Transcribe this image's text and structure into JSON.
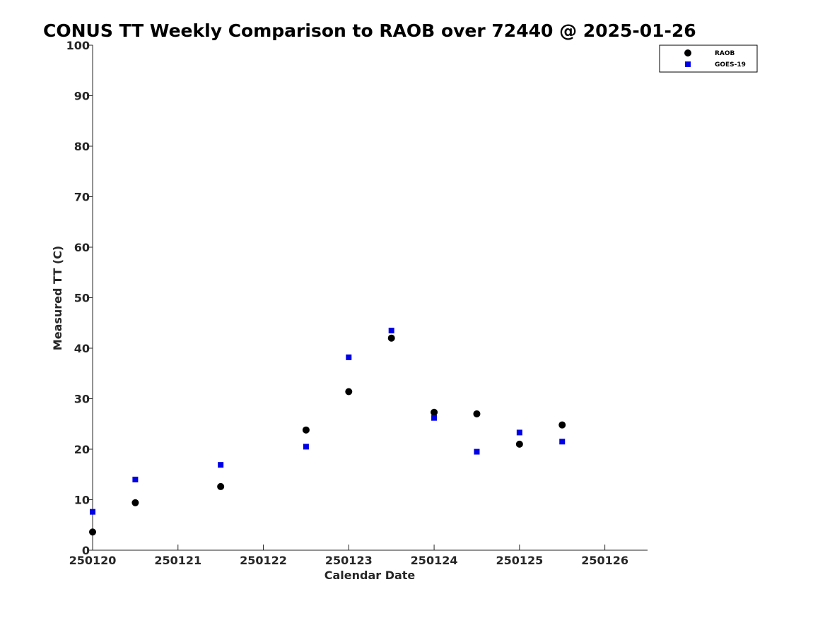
{
  "chart_data": {
    "type": "scatter",
    "title": "CONUS TT Weekly Comparison to RAOB over 72440 @ 2025-01-26",
    "xlabel": "Calendar Date",
    "ylabel": "Measured TT (C)",
    "xlim": [
      250120,
      250126.5
    ],
    "ylim": [
      0,
      100
    ],
    "xticks": [
      250120,
      250121,
      250122,
      250123,
      250124,
      250125,
      250126
    ],
    "xtick_labels": [
      "250120",
      "250121",
      "250122",
      "250123",
      "250124",
      "250125",
      "250126"
    ],
    "yticks": [
      0,
      10,
      20,
      30,
      40,
      50,
      60,
      70,
      80,
      90,
      100
    ],
    "ytick_labels": [
      "0",
      "10",
      "20",
      "30",
      "40",
      "50",
      "60",
      "70",
      "80",
      "90",
      "100"
    ],
    "grid": false,
    "legend_position": "top-right",
    "series": [
      {
        "name": "RAOB",
        "marker": "circle",
        "color": "#000000",
        "points": [
          {
            "x": 250120.0,
            "y": 3.6
          },
          {
            "x": 250120.5,
            "y": 9.4
          },
          {
            "x": 250121.5,
            "y": 12.6
          },
          {
            "x": 250122.5,
            "y": 23.8
          },
          {
            "x": 250123.0,
            "y": 31.4
          },
          {
            "x": 250123.5,
            "y": 42.0
          },
          {
            "x": 250124.0,
            "y": 27.3
          },
          {
            "x": 250124.5,
            "y": 27.0
          },
          {
            "x": 250125.0,
            "y": 21.0
          },
          {
            "x": 250125.5,
            "y": 24.8
          }
        ]
      },
      {
        "name": "GOES-19",
        "marker": "square",
        "color": "#0000e6",
        "points": [
          {
            "x": 250120.0,
            "y": 7.6
          },
          {
            "x": 250120.5,
            "y": 14.0
          },
          {
            "x": 250121.5,
            "y": 16.9
          },
          {
            "x": 250122.5,
            "y": 20.5
          },
          {
            "x": 250123.0,
            "y": 38.2
          },
          {
            "x": 250123.5,
            "y": 43.5
          },
          {
            "x": 250124.0,
            "y": 26.2
          },
          {
            "x": 250124.5,
            "y": 19.5
          },
          {
            "x": 250125.0,
            "y": 23.3
          },
          {
            "x": 250125.5,
            "y": 21.5
          }
        ]
      }
    ]
  }
}
